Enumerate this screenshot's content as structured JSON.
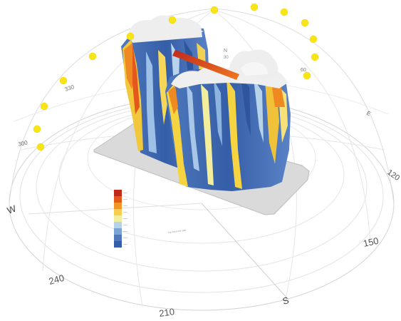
{
  "compass": {
    "west": "W",
    "south": "S",
    "east": "E",
    "north": "N",
    "deg_300": "300",
    "deg_330": "330",
    "deg_30": "30",
    "deg_60": "60",
    "deg_120": "120",
    "deg_150": "150",
    "deg_210": "210",
    "deg_240": "240"
  },
  "legend": {
    "colors": [
      "#c0281a",
      "#e4581c",
      "#f2962a",
      "#f7cf4e",
      "#f2ee9c",
      "#b7d3ea",
      "#7ba3d6",
      "#4f79bc",
      "#355ea8"
    ],
    "caption": "Sun hours per year"
  },
  "colors": {
    "sun": "#f7e51a",
    "facade_low": "#3f67b0",
    "facade_mid": "#8db3df",
    "facade_high": "#f6d340",
    "facade_peak": "#ef8a23",
    "ground_plate": "#d8d8d8",
    "dome_lines": "#cfcfcf"
  }
}
